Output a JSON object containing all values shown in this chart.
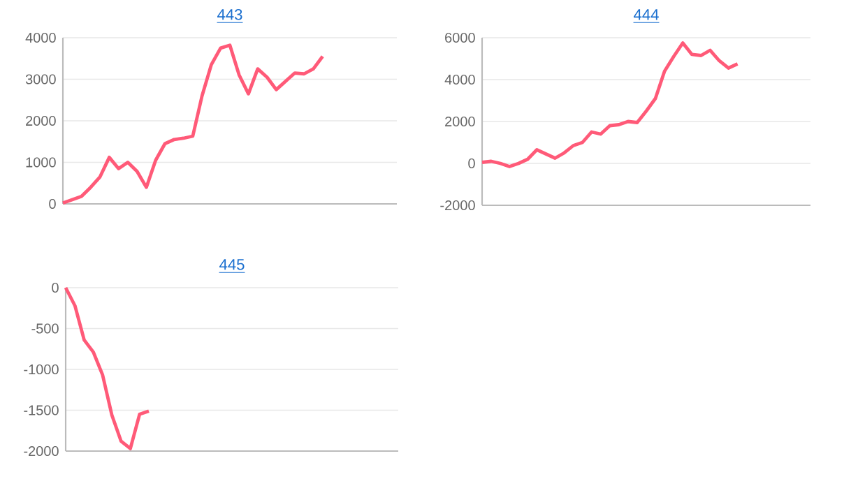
{
  "chart_data": [
    {
      "type": "line",
      "title": "443",
      "categories": [
        null,
        null,
        null,
        null,
        null,
        null,
        null,
        null,
        null,
        null,
        null,
        null,
        null,
        null,
        null,
        null,
        null,
        null,
        null,
        null,
        null,
        null,
        null,
        null,
        null,
        null,
        null,
        null,
        null,
        null,
        null,
        null,
        null,
        null,
        null,
        null,
        null
      ],
      "series": [
        {
          "color": "#ff5a78",
          "values": [
            20,
            100,
            180,
            400,
            650,
            1120,
            850,
            1000,
            780,
            400,
            1050,
            1450,
            1550,
            1580,
            1630,
            2600,
            3350,
            3750,
            3820,
            3100,
            2650,
            3250,
            3050,
            2750,
            2950,
            3150,
            3130,
            3250,
            3550,
            null,
            null,
            null,
            null,
            null,
            null,
            null,
            null
          ]
        }
      ],
      "ylim": [
        0,
        4000
      ],
      "yticks": [
        0,
        1000,
        2000,
        3000,
        4000
      ],
      "grid": "y",
      "tick_labels": "y",
      "marker": "none",
      "line_style": "solid"
    },
    {
      "type": "line",
      "title": "444",
      "categories": [
        null,
        null,
        null,
        null,
        null,
        null,
        null,
        null,
        null,
        null,
        null,
        null,
        null,
        null,
        null,
        null,
        null,
        null,
        null,
        null,
        null,
        null,
        null,
        null,
        null,
        null,
        null,
        null,
        null,
        null,
        null,
        null,
        null,
        null,
        null,
        null,
        null
      ],
      "series": [
        {
          "color": "#ff5a78",
          "values": [
            50,
            100,
            0,
            -150,
            0,
            200,
            650,
            450,
            250,
            500,
            850,
            1000,
            1500,
            1400,
            1800,
            1850,
            2000,
            1950,
            2500,
            3100,
            4400,
            5100,
            5750,
            5200,
            5150,
            5400,
            4900,
            4550,
            4750,
            null,
            null,
            null,
            null,
            null,
            null,
            null,
            null
          ]
        }
      ],
      "ylim": [
        -2000,
        6000
      ],
      "yticks": [
        -2000,
        0,
        2000,
        4000,
        6000
      ],
      "grid": "y",
      "tick_labels": "y",
      "marker": "none",
      "line_style": "solid"
    },
    {
      "type": "line",
      "title": "445",
      "categories": [
        null,
        null,
        null,
        null,
        null,
        null,
        null,
        null,
        null,
        null,
        null,
        null,
        null,
        null,
        null,
        null,
        null,
        null,
        null,
        null,
        null,
        null,
        null,
        null,
        null,
        null,
        null,
        null,
        null,
        null,
        null,
        null,
        null,
        null,
        null,
        null,
        null
      ],
      "series": [
        {
          "color": "#ff5a78",
          "values": [
            0,
            -220,
            -640,
            -790,
            -1070,
            -1560,
            -1880,
            -1970,
            -1550,
            -1510,
            null,
            null,
            null,
            null,
            null,
            null,
            null,
            null,
            null,
            null,
            null,
            null,
            null,
            null,
            null,
            null,
            null,
            null,
            null,
            null,
            null,
            null,
            null,
            null,
            null,
            null,
            null
          ]
        }
      ],
      "ylim": [
        -2000,
        0
      ],
      "yticks": [
        -2000,
        -1500,
        -1000,
        -500,
        0
      ],
      "grid": "y",
      "tick_labels": "y",
      "marker": "none",
      "line_style": "solid"
    }
  ]
}
